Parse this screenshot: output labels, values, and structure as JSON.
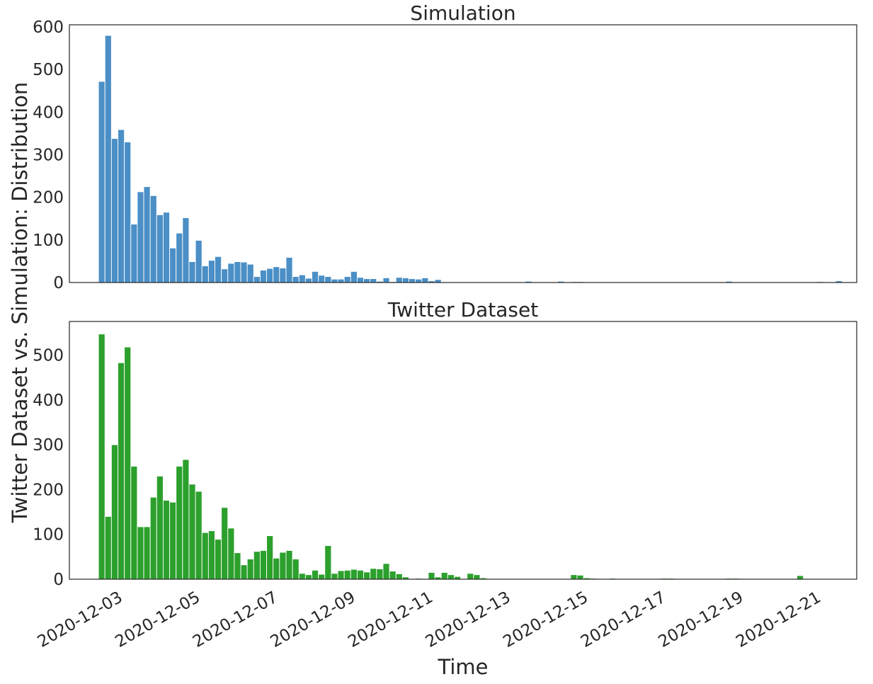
{
  "figure": {
    "shared_ylabel": "Twitter Dataset vs. Simulation: Distribution",
    "xlabel": "Time"
  },
  "chart_data": [
    {
      "type": "bar",
      "title": "Simulation",
      "color": "#4b8fc6",
      "xlabel": "",
      "ylabel": "",
      "xlim": [
        "2020-12-01T22:00",
        "2020-12-22T05:00"
      ],
      "ylim": [
        0,
        605
      ],
      "yticks": [
        0,
        100,
        200,
        300,
        400,
        500,
        600
      ],
      "xtick_labels_shown": false,
      "bin_start": "2020-12-02T16:00",
      "bin_hours": 4,
      "values": [
        472,
        580,
        338,
        359,
        330,
        137,
        213,
        225,
        204,
        159,
        165,
        81,
        116,
        152,
        49,
        99,
        39,
        52,
        61,
        32,
        45,
        49,
        48,
        43,
        14,
        29,
        33,
        37,
        34,
        59,
        14,
        18,
        10,
        26,
        17,
        14,
        8,
        8,
        14,
        26,
        12,
        9,
        9,
        3,
        11,
        2,
        12,
        11,
        9,
        8,
        11,
        4,
        7,
        0,
        0,
        0,
        0,
        0,
        0,
        0,
        0,
        0,
        0,
        0,
        0,
        0,
        3,
        0,
        0,
        0,
        0,
        3,
        0,
        2,
        2,
        0,
        0,
        0,
        0,
        0,
        0,
        0,
        0,
        0,
        0,
        0,
        0,
        0,
        0,
        0,
        0,
        0,
        0,
        0,
        0,
        0,
        0,
        3,
        0,
        0,
        0,
        0,
        0,
        0,
        0,
        0,
        0,
        0,
        0,
        0,
        0,
        2,
        0,
        0,
        4,
        0
      ]
    },
    {
      "type": "bar",
      "title": "Twitter Dataset",
      "color": "#2ca02c",
      "xlabel": "Time",
      "ylabel": "",
      "xlim": [
        "2020-12-01T22:00",
        "2020-12-22T05:00"
      ],
      "ylim": [
        0,
        575
      ],
      "yticks": [
        0,
        100,
        200,
        300,
        400,
        500
      ],
      "xticks": [
        "2020-12-03",
        "2020-12-05",
        "2020-12-07",
        "2020-12-09",
        "2020-12-11",
        "2020-12-13",
        "2020-12-15",
        "2020-12-17",
        "2020-12-19",
        "2020-12-21"
      ],
      "bin_start": "2020-12-02T16:00",
      "bin_hours": 4,
      "values": [
        547,
        140,
        300,
        483,
        518,
        252,
        117,
        117,
        183,
        230,
        176,
        172,
        252,
        267,
        212,
        196,
        104,
        108,
        89,
        160,
        114,
        59,
        32,
        45,
        62,
        64,
        97,
        47,
        60,
        64,
        45,
        13,
        10,
        20,
        11,
        75,
        13,
        19,
        20,
        22,
        20,
        16,
        24,
        23,
        35,
        18,
        12,
        5,
        0,
        2,
        0,
        15,
        5,
        15,
        10,
        6,
        0,
        13,
        10,
        3,
        0,
        0,
        0,
        0,
        0,
        0,
        0,
        0,
        0,
        0,
        0,
        0,
        0,
        10,
        9,
        3,
        2,
        0,
        0,
        2,
        0,
        0,
        0,
        0,
        0,
        0,
        0,
        2,
        2,
        0,
        0,
        0,
        0,
        0,
        0,
        0,
        0,
        2,
        2,
        0,
        0,
        0,
        0,
        0,
        0,
        0,
        0,
        0,
        8,
        0,
        0,
        0,
        0,
        0,
        0,
        0,
        0,
        0
      ]
    }
  ]
}
